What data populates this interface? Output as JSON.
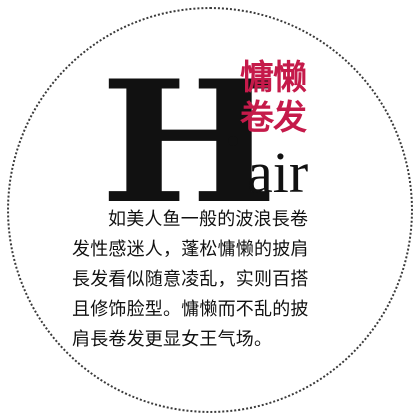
{
  "header": {
    "big_letter": "H",
    "rest_letters": "air",
    "red_title_line1": "慵懒",
    "red_title_line2": "卷发"
  },
  "body": {
    "lines": [
      "如美人鱼一般的波浪長卷",
      "发性感迷人，蓬松慵懒的披肩",
      "長发看似随意凌乱，实则百搭",
      "且修饰脸型。慵懒而不乱的披",
      "肩長卷发更显女王气场。"
    ]
  },
  "colors": {
    "accent": "#c51a4a",
    "text": "#111111",
    "border": "#3a3a3a"
  }
}
